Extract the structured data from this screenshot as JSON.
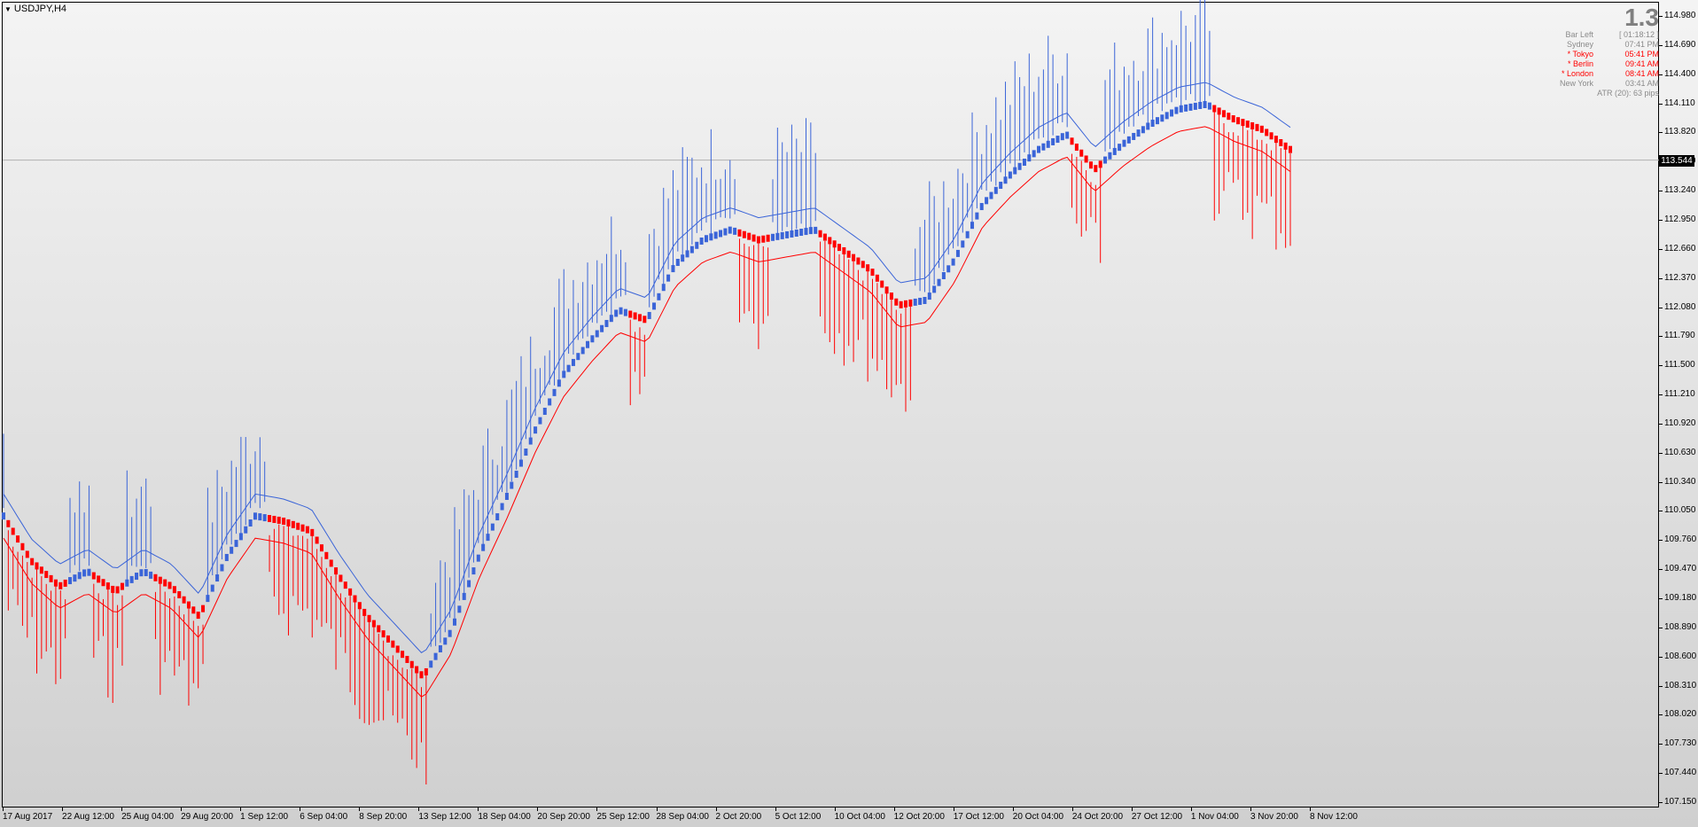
{
  "symbol": "USDJPY,H4",
  "colors": {
    "bull": "#3a64d8",
    "bear": "#ff0000",
    "upper_band": "#3a64d8",
    "lower_band": "#ff0000",
    "price_line": "#b0b0b0"
  },
  "info_panel": {
    "big_value": "1.3",
    "rows": [
      {
        "label": "Bar Left",
        "value": "[ 01:18:12 ]",
        "highlight": false
      },
      {
        "label": "Sydney",
        "value": "07:41 PM",
        "highlight": false
      },
      {
        "label": "* Tokyo",
        "value": "05:41 PM",
        "highlight": true
      },
      {
        "label": "* Berlin",
        "value": "09:41 AM",
        "highlight": true
      },
      {
        "label": "* London",
        "value": "08:41 AM",
        "highlight": true
      },
      {
        "label": "New York",
        "value": "03:41 AM",
        "highlight": false
      }
    ],
    "atr": "ATR (20): 63 pips"
  },
  "current_price": "113.544",
  "chart_data": {
    "type": "line",
    "ylim": [
      107.0,
      115.2
    ],
    "yticks": [
      "114.980",
      "114.690",
      "114.400",
      "114.110",
      "113.820",
      "113.530",
      "113.240",
      "112.950",
      "112.660",
      "112.370",
      "112.080",
      "111.790",
      "111.500",
      "111.210",
      "110.920",
      "110.630",
      "110.340",
      "110.050",
      "109.760",
      "109.470",
      "109.180",
      "108.890",
      "108.600",
      "108.310",
      "108.020",
      "107.730",
      "107.440",
      "107.150"
    ],
    "xticks": [
      "17 Aug 2017",
      "22 Aug 12:00",
      "25 Aug 04:00",
      "29 Aug 20:00",
      "1 Sep 12:00",
      "6 Sep 04:00",
      "8 Sep 20:00",
      "13 Sep 12:00",
      "18 Sep 04:00",
      "20 Sep 20:00",
      "25 Sep 12:00",
      "28 Sep 04:00",
      "2 Oct 20:00",
      "5 Oct 12:00",
      "10 Oct 04:00",
      "12 Oct 20:00",
      "17 Oct 12:00",
      "20 Oct 04:00",
      "24 Oct 20:00",
      "27 Oct 12:00",
      "1 Nov 04:00",
      "3 Nov 20:00",
      "8 Nov 12:00"
    ],
    "series": [
      {
        "name": "",
        "values": [
          110.0,
          109.55,
          109.3,
          109.45,
          109.25,
          109.45,
          109.3,
          109.0,
          109.6,
          110.0,
          109.95,
          109.85,
          109.4,
          109.0,
          108.7,
          108.4,
          108.85,
          109.6,
          110.2,
          110.85,
          111.4,
          111.75,
          112.05,
          111.95,
          112.5,
          112.75,
          112.85,
          112.75,
          112.8,
          112.85,
          112.65,
          112.45,
          112.1,
          112.15,
          112.55,
          113.1,
          113.4,
          113.65,
          113.8,
          113.45,
          113.7,
          113.9,
          114.05,
          114.1,
          113.95,
          113.85,
          113.65
        ]
      }
    ]
  }
}
